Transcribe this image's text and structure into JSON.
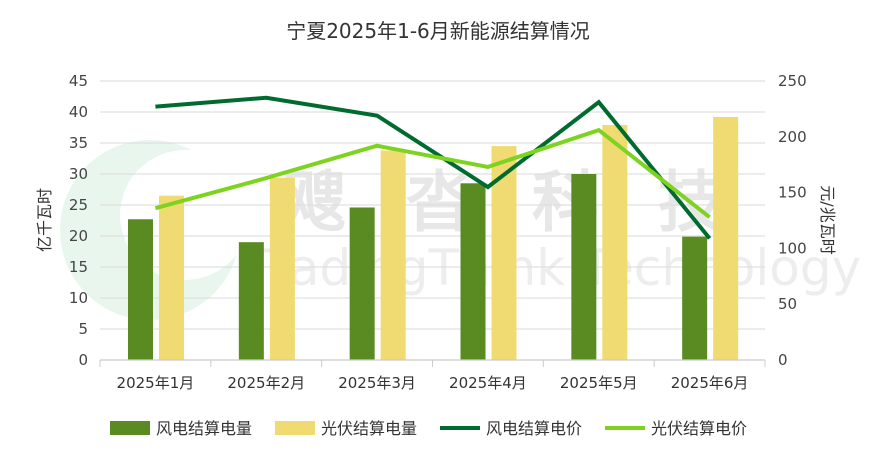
{
  "chart_data": {
    "type": "bar",
    "title": "宁夏2025年1-6月新能源结算情况",
    "categories": [
      "2025年1月",
      "2025年2月",
      "2025年3月",
      "2025年4月",
      "2025年5月",
      "2025年6月"
    ],
    "ylabel": "亿千瓦时",
    "y2label": "元/兆瓦时",
    "ylim": [
      0,
      45
    ],
    "y2lim": [
      0,
      250
    ],
    "yticks": [
      0,
      5,
      10,
      15,
      20,
      25,
      30,
      35,
      40,
      45
    ],
    "y2ticks": [
      0,
      50,
      100,
      150,
      200,
      250
    ],
    "grid": true,
    "legend_position": "bottom",
    "series": [
      {
        "name": "风电结算电量",
        "type": "bar",
        "axis": "left",
        "color": "#5a8a22",
        "values": [
          22.7,
          19.0,
          24.6,
          28.5,
          30.0,
          19.9
        ]
      },
      {
        "name": "光伏结算电量",
        "type": "bar",
        "axis": "left",
        "color": "#f0da72",
        "values": [
          26.5,
          29.4,
          33.8,
          34.5,
          37.9,
          39.2
        ]
      },
      {
        "name": "风电结算电价",
        "type": "line",
        "axis": "right",
        "color": "#006b2e",
        "values": [
          227,
          235,
          219,
          155,
          231,
          109
        ]
      },
      {
        "name": "光伏结算电价",
        "type": "line",
        "axis": "right",
        "color": "#7ed321",
        "values": [
          136,
          163,
          192,
          173,
          206,
          128
        ]
      }
    ]
  },
  "watermark": {
    "cn": "飕沓科技",
    "en": "TradingThink Technology"
  }
}
